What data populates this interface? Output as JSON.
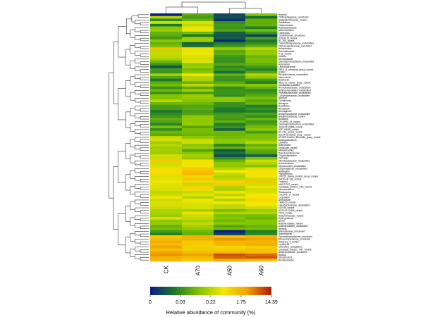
{
  "chart_data": {
    "type": "heatmap",
    "title": "",
    "columns": [
      "CK",
      "A70",
      "A50",
      "A60"
    ],
    "rows": [
      "Hirschia",
      "Chitinophagaceae_uncultured",
      "Hallangiumforaceae_norank",
      "Gaiellaceae",
      "Thermomonas",
      "Acetobacteraceae",
      "Mesorhizobium",
      "Lutemonas",
      "Caulifilmaceae_uncultured",
      "KCM-B-15_norank",
      "B1-7BS_norank",
      "Thermoflexisporaceae_unclassified",
      "Chthoniobacteraceae_uncultured",
      "Nocardioides",
      "Gemmatimonas",
      "H-16_norank",
      "Kofleria",
      "Steroidobacter",
      "Gammaproteobacteria_unclassified",
      "Agromyces",
      "Lechnospiraceae",
      "SBD1-11_terrestrial_group_norank",
      "Ensifer",
      "Rhodoferimonas_unclassified",
      "Marmoricola",
      "Bryobacter",
      "NB1-j-12_marine_group_norank",
      "Candidatus Solibacter",
      "Rhodobacteraceae_unclassified",
      "Sphingomonadales_unclassified",
      "Phyllobacteriaceae_unclassified",
      "Caulobacteraceae_unclassified",
      "SM1A02",
      "Comamonas",
      "Nitrospira",
      "Rosoffexus",
      "Rhodobium",
      "Devosiginum",
      "Bradyrhizobiaceae_unclassified",
      "Bradyrhizobiaceae_norank",
      "Nodularia",
      "OP-WPS1-16_norank",
      "Gammaproteobacteria_unclassified",
      "JG34-KF-C/B86_norank",
      "JGP-148/4B_norank",
      "SC-I-84_norank_norank",
      "S0134_terrestrial_group_norank",
      "KF4201-Eub211_terrestrial_group_norank",
      "Sphingobacterium",
      "Cellvibrio",
      "Siderobacter",
      "Dechloperi_norank",
      "Methylobacillus",
      "Pseudoxanthomonas",
      "Chryseobacterium",
      "Ochrobac",
      "Microbacteriaceae_unclassified",
      "Aeromicrobium",
      "Myxococcales_unclassified",
      "Cytophagaceae_unclassified",
      "Haliangium",
      "Planctomyces",
      "JTB255_marine_benthic_group_norank",
      "PHOS-HE-136_norank",
      "Truepera",
      "MNG7/TG2_norank",
      "Candidate_Division_OD1_norank",
      "Microbacterium",
      "Rhodocyclus",
      "env.OPS_17_norank",
      "Clostridium",
      "Arthrobacter",
      "TRA3-20_norank",
      "Flavobacteriaceae_unclassified",
      "KD4-96_norank",
      "JG30-KF-CM45_norank",
      "TK10_norank",
      "Anaerolineaceae_norank",
      "Sphingomonas",
      "Isoma",
      "Acidimicrobiales_norank",
      "Acidimicrobiales_unclassified",
      "Nevskia",
      "Moraxellaceae_uncultured",
      "Acinetobacter",
      "Gemmatimonadaceae_uncultured",
      "Nitrosomonadaceae_uncultured",
      "Subgroup_6_norank",
      "Lysobacter",
      "Chloroflexi_unclassified",
      "Candidate_division_TM7_norank",
      "Anaerolineaceae_uncultured",
      "Bacillus",
      "Streptomyces",
      "Rhodanobacter"
    ],
    "values": [
      [
        0.01,
        0.32,
        0.1,
        0.41
      ],
      [
        0.49,
        0.29,
        0.11,
        0.18
      ],
      [
        0.24,
        0.35,
        0.05,
        0.35
      ],
      [
        0.54,
        0.56,
        0.26,
        0.34
      ],
      [
        0.2,
        0.51,
        0.29,
        0.35
      ],
      [
        0.42,
        0.58,
        0.27,
        0.21
      ],
      [
        0.44,
        0.58,
        0.32,
        0.38
      ],
      [
        0.35,
        0.37,
        0.14,
        0.27
      ],
      [
        0.33,
        0.2,
        0.13,
        0.08
      ],
      [
        0.28,
        0.45,
        0.14,
        0.3
      ],
      [
        0.42,
        0.45,
        0.03,
        0.19
      ],
      [
        0.35,
        0.15,
        0.22,
        0.25
      ],
      [
        0.39,
        0.19,
        0.27,
        0.34
      ],
      [
        0.71,
        0.58,
        0.44,
        0.49
      ],
      [
        0.51,
        0.58,
        0.33,
        0.43
      ],
      [
        0.52,
        0.59,
        0.34,
        0.44
      ],
      [
        0.51,
        0.56,
        0.28,
        0.36
      ],
      [
        0.47,
        0.54,
        0.26,
        0.39
      ],
      [
        0.36,
        0.57,
        0.26,
        0.38
      ],
      [
        0.27,
        0.42,
        0.32,
        0.35
      ],
      [
        0.12,
        0.45,
        0.24,
        0.29
      ],
      [
        0.28,
        0.38,
        0.28,
        0.22
      ],
      [
        0.27,
        0.41,
        0.18,
        0.31
      ],
      [
        0.46,
        0.62,
        0.34,
        0.49
      ],
      [
        0.31,
        0.5,
        0.27,
        0.43
      ],
      [
        0.2,
        0.48,
        0.26,
        0.28
      ],
      [
        0.33,
        0.36,
        0.33,
        0.22
      ],
      [
        0.38,
        0.51,
        0.4,
        0.42
      ],
      [
        0.26,
        0.33,
        0.25,
        0.34
      ],
      [
        0.37,
        0.46,
        0.27,
        0.25
      ],
      [
        0.26,
        0.3,
        0.27,
        0.28
      ],
      [
        0.41,
        0.45,
        0.25,
        0.33
      ],
      [
        0.4,
        0.44,
        0.43,
        0.39
      ],
      [
        0.5,
        0.41,
        0.42,
        0.32
      ],
      [
        0.37,
        0.37,
        0.27,
        0.36
      ],
      [
        0.29,
        0.31,
        0.26,
        0.21
      ],
      [
        0.29,
        0.33,
        0.21,
        0.26
      ],
      [
        0.2,
        0.29,
        0.19,
        0.21
      ],
      [
        0.24,
        0.31,
        0.28,
        0.31
      ],
      [
        0.28,
        0.42,
        0.3,
        0.25
      ],
      [
        0.34,
        0.43,
        0.28,
        0.36
      ],
      [
        0.31,
        0.43,
        0.34,
        0.27
      ],
      [
        0.23,
        0.44,
        0.21,
        0.31
      ],
      [
        0.39,
        0.32,
        0.26,
        0.38
      ],
      [
        0.25,
        0.39,
        0.15,
        0.42
      ],
      [
        0.37,
        0.38,
        0.37,
        0.29
      ],
      [
        0.33,
        0.36,
        0.36,
        0.39
      ],
      [
        0.52,
        0.43,
        0.38,
        0.39
      ],
      [
        0.55,
        0.53,
        0.42,
        0.43
      ],
      [
        0.45,
        0.54,
        0.42,
        0.5
      ],
      [
        0.5,
        0.41,
        0.23,
        0.35
      ],
      [
        0.45,
        0.45,
        0.35,
        0.41
      ],
      [
        0.46,
        0.31,
        0.13,
        0.33
      ],
      [
        0.45,
        0.41,
        0.19,
        0.31
      ],
      [
        0.53,
        0.47,
        0.1,
        0.14
      ],
      [
        0.53,
        0.44,
        0.25,
        0.39
      ],
      [
        0.69,
        0.62,
        0.36,
        0.53
      ],
      [
        0.54,
        0.59,
        0.43,
        0.49
      ],
      [
        0.55,
        0.61,
        0.42,
        0.41
      ],
      [
        0.63,
        0.68,
        0.49,
        0.56
      ],
      [
        0.63,
        0.71,
        0.6,
        0.61
      ],
      [
        0.64,
        0.73,
        0.52,
        0.62
      ],
      [
        0.56,
        0.65,
        0.48,
        0.61
      ],
      [
        0.57,
        0.68,
        0.51,
        0.53
      ],
      [
        0.59,
        0.65,
        0.66,
        0.69
      ],
      [
        0.57,
        0.52,
        0.67,
        0.54
      ],
      [
        0.56,
        0.66,
        0.49,
        0.58
      ],
      [
        0.55,
        0.64,
        0.48,
        0.54
      ],
      [
        0.51,
        0.52,
        0.59,
        0.55
      ],
      [
        0.53,
        0.57,
        0.5,
        0.6
      ],
      [
        0.59,
        0.49,
        0.59,
        0.61
      ],
      [
        0.53,
        0.59,
        0.48,
        0.65
      ],
      [
        0.55,
        0.57,
        0.6,
        0.61
      ],
      [
        0.55,
        0.55,
        0.51,
        0.59
      ],
      [
        0.52,
        0.55,
        0.51,
        0.53
      ],
      [
        0.48,
        0.46,
        0.38,
        0.44
      ],
      [
        0.48,
        0.58,
        0.48,
        0.49
      ],
      [
        0.44,
        0.53,
        0.39,
        0.38
      ],
      [
        0.55,
        0.51,
        0.41,
        0.36
      ],
      [
        0.42,
        0.47,
        0.37,
        0.41
      ],
      [
        0.44,
        0.51,
        0.42,
        0.41
      ],
      [
        0.35,
        0.46,
        0.31,
        0.36
      ],
      [
        0.38,
        0.43,
        0.38,
        0.38
      ],
      [
        0.29,
        0.37,
        0.01,
        0.21
      ],
      [
        0.22,
        0.34,
        0.08,
        0.24
      ],
      [
        0.68,
        0.75,
        0.71,
        0.74
      ],
      [
        0.72,
        0.75,
        0.82,
        0.79
      ],
      [
        0.76,
        0.69,
        0.75,
        0.74
      ],
      [
        0.73,
        0.68,
        0.73,
        0.76
      ],
      [
        0.79,
        0.67,
        0.65,
        0.67
      ],
      [
        0.71,
        0.68,
        0.68,
        0.7
      ],
      [
        0.78,
        0.72,
        0.73,
        0.72
      ],
      [
        0.82,
        0.8,
        0.92,
        0.88
      ],
      [
        0.75,
        0.73,
        0.89,
        0.91
      ],
      [
        0.73,
        0.68,
        0.76,
        0.72
      ]
    ],
    "value_scale": "0-1 fraction along color bar",
    "colorbar": {
      "ticks": [
        "0",
        "0.03",
        "0.22",
        "1.75",
        "14.39"
      ],
      "label": "Relative abundance of community (%)",
      "colors": [
        "#0a1a8c",
        "#1a7a2a",
        "#7fc400",
        "#f5e800",
        "#f4a000",
        "#b01a0a"
      ]
    }
  }
}
